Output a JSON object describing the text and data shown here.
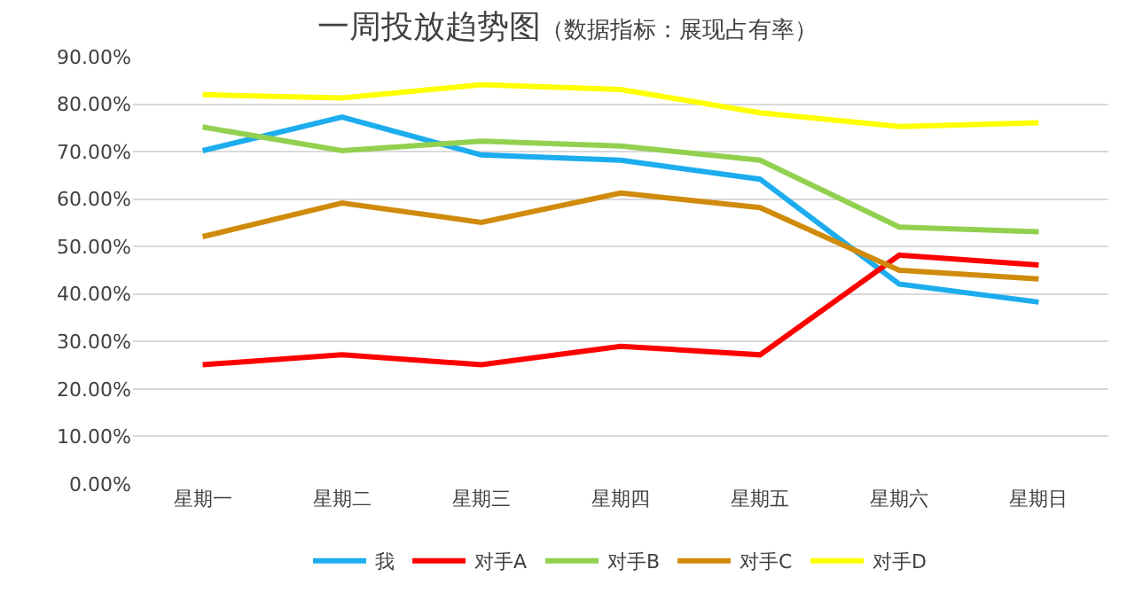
{
  "chart_data": {
    "type": "line",
    "title": "一周投放趋势图",
    "subtitle": "（数据指标：展现占有率）",
    "categories": [
      "星期一",
      "星期二",
      "星期三",
      "星期四",
      "星期五",
      "星期六",
      "星期日"
    ],
    "series": [
      {
        "name": "我",
        "color": "#1cadee",
        "values": [
          0.702,
          0.773,
          0.693,
          0.682,
          0.642,
          0.421,
          0.383
        ]
      },
      {
        "name": "对手A",
        "color": "#ff0000",
        "values": [
          0.251,
          0.272,
          0.251,
          0.29,
          0.272,
          0.482,
          0.461
        ]
      },
      {
        "name": "对手B",
        "color": "#92d050",
        "values": [
          0.752,
          0.702,
          0.722,
          0.712,
          0.682,
          0.541,
          0.531
        ]
      },
      {
        "name": "对手C",
        "color": "#d08b0c",
        "values": [
          0.521,
          0.592,
          0.551,
          0.613,
          0.582,
          0.45,
          0.432
        ]
      },
      {
        "name": "对手D",
        "color": "#ffff00",
        "values": [
          0.82,
          0.813,
          0.841,
          0.831,
          0.782,
          0.753,
          0.761
        ]
      }
    ],
    "ylim": [
      0,
      0.9
    ],
    "yticks": [
      {
        "value": 0,
        "label": "0.00%"
      },
      {
        "value": 0.1,
        "label": "10.00%"
      },
      {
        "value": 0.2,
        "label": "20.00%"
      },
      {
        "value": 0.3,
        "label": "30.00%"
      },
      {
        "value": 0.4,
        "label": "40.00%"
      },
      {
        "value": 0.5,
        "label": "50.00%"
      },
      {
        "value": 0.6,
        "label": "60.00%"
      },
      {
        "value": 0.7,
        "label": "70.00%"
      },
      {
        "value": 0.8,
        "label": "80.00%"
      },
      {
        "value": 0.9,
        "label": "90.00%"
      }
    ],
    "grid": "y",
    "legend": "bottom",
    "marker": "none",
    "line_style": "solid"
  }
}
